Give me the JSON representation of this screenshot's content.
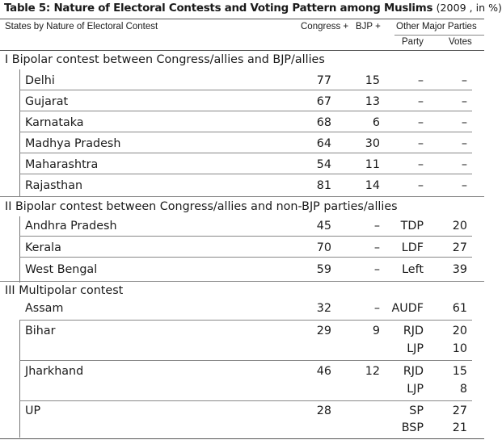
{
  "title": {
    "main": "Table 5: Nature of Electoral Contests and Voting Pattern among Muslims",
    "paren": "(2009 , in %)"
  },
  "headers": {
    "states": "States by Nature of Electoral Contest",
    "congress": "Congress +",
    "bjp": "BJP +",
    "other": "Other Major Parties",
    "party": "Party",
    "votes": "Votes"
  },
  "sections": [
    {
      "title": "I   Bipolar contest between Congress/allies  and BJP/allies",
      "rows": [
        {
          "state": "Delhi",
          "congress": "77",
          "bjp": "15",
          "party": "–",
          "votes": "–"
        },
        {
          "state": "Gujarat",
          "congress": "67",
          "bjp": "13",
          "party": "–",
          "votes": "–"
        },
        {
          "state": "Karnataka",
          "congress": "68",
          "bjp": "6",
          "party": "–",
          "votes": "–"
        },
        {
          "state": "Madhya Pradesh",
          "congress": "64",
          "bjp": "30",
          "party": "–",
          "votes": "–"
        },
        {
          "state": "Maharashtra",
          "congress": "54",
          "bjp": "11",
          "party": "–",
          "votes": "–"
        },
        {
          "state": "Rajasthan",
          "congress": "81",
          "bjp": "14",
          "party": "–",
          "votes": "–"
        }
      ]
    },
    {
      "title": "II  Bipolar contest between Congress/allies and non-BJP parties/allies",
      "rows": [
        {
          "state": "Andhra Pradesh",
          "congress": "45",
          "bjp": "–",
          "party": "TDP",
          "votes": "20"
        },
        {
          "state": "Kerala",
          "congress": "70",
          "bjp": "–",
          "party": "LDF",
          "votes": "27"
        },
        {
          "state": "West Bengal",
          "congress": "59",
          "bjp": "–",
          "party": "Left",
          "votes": "39"
        }
      ]
    },
    {
      "title": "III  Multipolar contest",
      "rows": [
        {
          "state": "Assam",
          "congress": "32",
          "bjp": "–",
          "party": "AUDF",
          "votes": "61"
        },
        {
          "state": "Bihar",
          "congress": "29",
          "bjp": "9",
          "party": "RJD",
          "votes": "20",
          "party2": "LJP",
          "votes2": "10"
        },
        {
          "state": "Jharkhand",
          "congress": "46",
          "bjp": "12",
          "party": "RJD",
          "votes": "15",
          "party2": "LJP",
          "votes2": "8"
        },
        {
          "state": "UP",
          "congress": "28",
          "bjp": "",
          "party": "SP",
          "votes": "27",
          "party2": "BSP",
          "votes2": "21"
        }
      ]
    }
  ]
}
